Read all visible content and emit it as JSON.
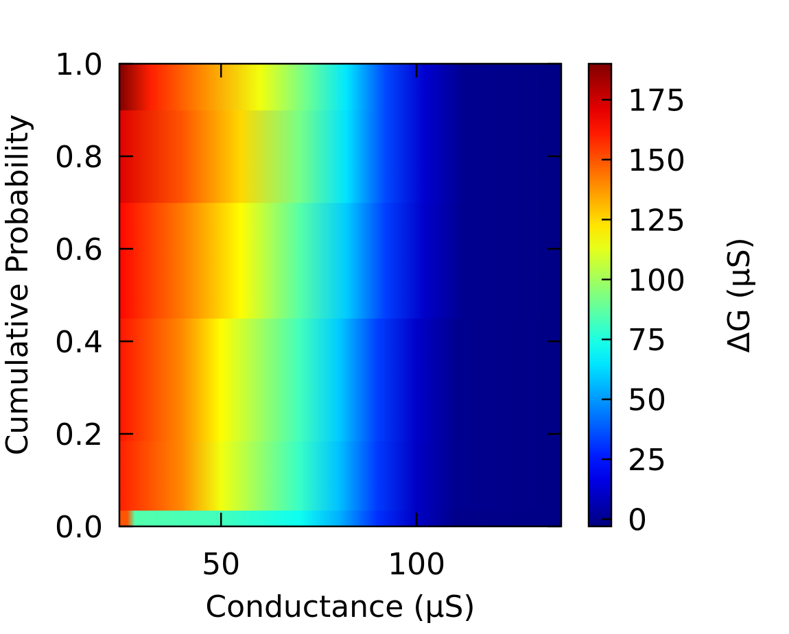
{
  "chart_data": {
    "type": "heatmap",
    "title": "",
    "xlabel": "Conductance (μS)",
    "ylabel": "Cumulative Probability",
    "xlim": [
      24,
      137
    ],
    "ylim": [
      0.0,
      1.0
    ],
    "x_ticks": [
      50,
      100
    ],
    "x_tick_labels": [
      "50",
      "100"
    ],
    "y_ticks": [
      0.0,
      0.2,
      0.4,
      0.6,
      0.8,
      1.0
    ],
    "y_tick_labels": [
      "0.0",
      "0.2",
      "0.4",
      "0.6",
      "0.8",
      "1.0"
    ],
    "colormap": "jet",
    "colorbar": {
      "label": "ΔG (μS)",
      "range": [
        -3,
        190
      ],
      "ticks": [
        0,
        25,
        50,
        75,
        100,
        125,
        150,
        175
      ],
      "tick_labels": [
        "0",
        "25",
        "50",
        "75",
        "100",
        "125",
        "150",
        "175"
      ]
    },
    "color_values_by_row": [
      {
        "cp": 0.0,
        "columns": [
          {
            "x": 24,
            "value": 150
          },
          {
            "x": 26,
            "value": 150
          },
          {
            "x": 28,
            "value": 85
          },
          {
            "x": 50,
            "value": 82
          },
          {
            "x": 70,
            "value": 72
          },
          {
            "x": 80,
            "value": 55
          },
          {
            "x": 90,
            "value": 30
          },
          {
            "x": 100,
            "value": 10
          },
          {
            "x": 110,
            "value": -1
          },
          {
            "x": 137,
            "value": -2
          }
        ]
      },
      {
        "cp": 0.07,
        "columns": [
          {
            "x": 24,
            "value": 160
          },
          {
            "x": 40,
            "value": 140
          },
          {
            "x": 50,
            "value": 115
          },
          {
            "x": 70,
            "value": 80
          },
          {
            "x": 80,
            "value": 58
          },
          {
            "x": 90,
            "value": 32
          },
          {
            "x": 100,
            "value": 10
          },
          {
            "x": 110,
            "value": 0
          },
          {
            "x": 137,
            "value": -2
          }
        ]
      },
      {
        "cp": 0.3,
        "columns": [
          {
            "x": 24,
            "value": 162
          },
          {
            "x": 40,
            "value": 140
          },
          {
            "x": 50,
            "value": 118
          },
          {
            "x": 70,
            "value": 82
          },
          {
            "x": 80,
            "value": 60
          },
          {
            "x": 90,
            "value": 33
          },
          {
            "x": 100,
            "value": 11
          },
          {
            "x": 110,
            "value": 0
          },
          {
            "x": 137,
            "value": -2
          }
        ]
      },
      {
        "cp": 0.6,
        "columns": [
          {
            "x": 24,
            "value": 165
          },
          {
            "x": 40,
            "value": 143
          },
          {
            "x": 55,
            "value": 118
          },
          {
            "x": 70,
            "value": 86
          },
          {
            "x": 82,
            "value": 60
          },
          {
            "x": 92,
            "value": 33
          },
          {
            "x": 102,
            "value": 11
          },
          {
            "x": 112,
            "value": 0
          },
          {
            "x": 137,
            "value": -2
          }
        ]
      },
      {
        "cp": 0.8,
        "columns": [
          {
            "x": 24,
            "value": 172
          },
          {
            "x": 40,
            "value": 150
          },
          {
            "x": 55,
            "value": 125
          },
          {
            "x": 70,
            "value": 92
          },
          {
            "x": 82,
            "value": 64
          },
          {
            "x": 92,
            "value": 35
          },
          {
            "x": 102,
            "value": 12
          },
          {
            "x": 112,
            "value": 0
          },
          {
            "x": 137,
            "value": -2
          }
        ]
      },
      {
        "cp": 1.0,
        "columns": [
          {
            "x": 24,
            "value": 190
          },
          {
            "x": 32,
            "value": 160
          },
          {
            "x": 45,
            "value": 140
          },
          {
            "x": 60,
            "value": 115
          },
          {
            "x": 72,
            "value": 90
          },
          {
            "x": 82,
            "value": 65
          },
          {
            "x": 92,
            "value": 35
          },
          {
            "x": 102,
            "value": 12
          },
          {
            "x": 112,
            "value": 0
          },
          {
            "x": 137,
            "value": -2
          }
        ]
      }
    ]
  }
}
